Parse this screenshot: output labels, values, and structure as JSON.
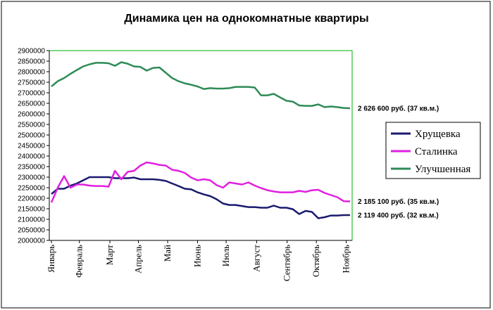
{
  "chart_data": {
    "type": "line",
    "title": "Динамика цен на однокомнатные квартиры",
    "xlabel": "",
    "ylabel": "",
    "ylim": [
      2000000,
      2900000
    ],
    "ytick_step": 50000,
    "yticks": [
      "2000000",
      "2050000",
      "2100000",
      "2150000",
      "2200000",
      "2250000",
      "2300000",
      "2350000",
      "2400000",
      "2450000",
      "2500000",
      "2550000",
      "2600000",
      "2650000",
      "2700000",
      "2750000",
      "2800000",
      "2850000",
      "2900000"
    ],
    "x_count": 48,
    "month_labels": [
      "Январь",
      "Февраль",
      "Март",
      "Апрель",
      "Май",
      "Июнь",
      "Июль",
      "Август",
      "Сентябрь",
      "Октябрь",
      "Ноябрь"
    ],
    "month_positions": [
      0,
      4.4,
      9.2,
      13.7,
      18.3,
      23.0,
      27.5,
      32.3,
      37.1,
      41.7,
      46.4
    ],
    "grid": false,
    "legend_position": "right",
    "series": [
      {
        "name": "Хрущевка",
        "color": "#1a1a6e",
        "values": [
          2220000,
          2245000,
          2245000,
          2260000,
          2270000,
          2285000,
          2300000,
          2300000,
          2300000,
          2300000,
          2295000,
          2295000,
          2295000,
          2298000,
          2290000,
          2290000,
          2290000,
          2287000,
          2282000,
          2270000,
          2258000,
          2245000,
          2242000,
          2228000,
          2218000,
          2210000,
          2195000,
          2175000,
          2168000,
          2168000,
          2163000,
          2158000,
          2158000,
          2155000,
          2155000,
          2165000,
          2155000,
          2155000,
          2148000,
          2125000,
          2140000,
          2135000,
          2105000,
          2110000,
          2118000,
          2118000,
          2120000,
          2120000
        ]
      },
      {
        "name": "Сталинка",
        "color": "#e020e0",
        "values": [
          2180000,
          2250000,
          2305000,
          2250000,
          2265000,
          2265000,
          2260000,
          2258000,
          2258000,
          2255000,
          2330000,
          2290000,
          2325000,
          2330000,
          2355000,
          2370000,
          2365000,
          2358000,
          2355000,
          2335000,
          2330000,
          2320000,
          2298000,
          2285000,
          2290000,
          2285000,
          2262000,
          2250000,
          2275000,
          2270000,
          2265000,
          2275000,
          2260000,
          2248000,
          2238000,
          2232000,
          2228000,
          2228000,
          2228000,
          2235000,
          2230000,
          2238000,
          2240000,
          2225000,
          2215000,
          2205000,
          2186000,
          2185000
        ]
      },
      {
        "name": "Улучшенная",
        "color": "#2e8b57",
        "values": [
          2730000,
          2755000,
          2770000,
          2790000,
          2808000,
          2825000,
          2835000,
          2842000,
          2842000,
          2840000,
          2828000,
          2845000,
          2838000,
          2825000,
          2823000,
          2805000,
          2818000,
          2820000,
          2795000,
          2770000,
          2755000,
          2745000,
          2738000,
          2730000,
          2718000,
          2722000,
          2720000,
          2720000,
          2722000,
          2728000,
          2728000,
          2728000,
          2725000,
          2688000,
          2688000,
          2695000,
          2678000,
          2662000,
          2658000,
          2640000,
          2638000,
          2638000,
          2645000,
          2632000,
          2635000,
          2632000,
          2628000,
          2626600
        ]
      }
    ],
    "annotations": [
      {
        "series": "Улучшенная",
        "text": "2 626 600 руб. (37 кв.м.)"
      },
      {
        "series": "Сталинка",
        "text": "2 185 100 руб. (35 кв.м.)"
      },
      {
        "series": "Хрущевка",
        "text": "2 119 400 руб. (32 кв.м.)"
      }
    ],
    "colors": {
      "plot_border": "#00b000",
      "chart_border": "#000000",
      "background": "#ffffff"
    }
  }
}
